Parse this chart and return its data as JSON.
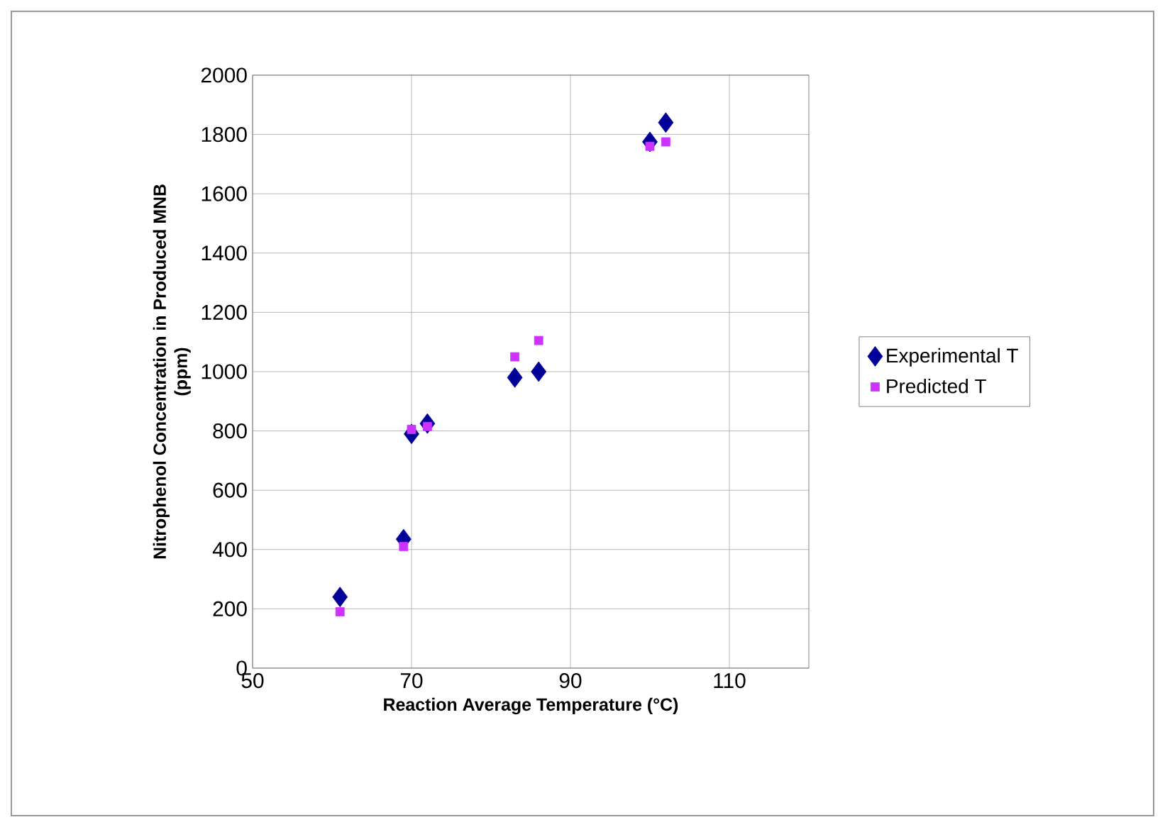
{
  "chart_data": {
    "type": "scatter",
    "xlabel": "Reaction Average Temperature (°C)",
    "ylabel": "Nitrophenol Concentration in Produced MNB (ppm)",
    "xlim": [
      50,
      120
    ],
    "xticks": [
      50,
      70,
      90,
      110
    ],
    "ylim": [
      0,
      2000
    ],
    "yticks": [
      0,
      200,
      400,
      600,
      800,
      1000,
      1200,
      1400,
      1600,
      1800,
      2000
    ],
    "grid": true,
    "legend": "right",
    "series": [
      {
        "name": "Experimental T",
        "color": "#000099",
        "marker": "diamond",
        "x": [
          61,
          69,
          70,
          72,
          83,
          86,
          100,
          102
        ],
        "values": [
          240,
          435,
          790,
          825,
          980,
          1000,
          1775,
          1840
        ]
      },
      {
        "name": "Predicted T",
        "color": "#cc33ff",
        "marker": "square",
        "x": [
          61,
          69,
          70,
          72,
          83,
          86,
          100,
          102
        ],
        "values": [
          190,
          410,
          805,
          815,
          1050,
          1105,
          1760,
          1775
        ]
      }
    ]
  }
}
